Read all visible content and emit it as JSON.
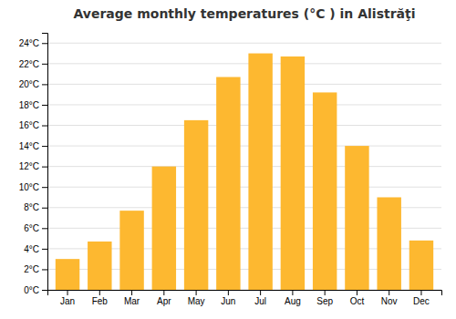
{
  "chart_data": {
    "type": "bar",
    "title": "Average monthly temperatures (°C ) in Alistrăţi",
    "categories": [
      "Jan",
      "Feb",
      "Mar",
      "Apr",
      "May",
      "Jun",
      "Jul",
      "Aug",
      "Sep",
      "Oct",
      "Nov",
      "Dec"
    ],
    "values": [
      3.0,
      4.7,
      7.7,
      12.0,
      16.5,
      20.7,
      23.0,
      22.7,
      19.2,
      14.0,
      9.0,
      4.8
    ],
    "color": "#FDB830",
    "ylim": [
      0,
      25
    ],
    "yticks": [
      {
        "value": 0,
        "label": "0°C"
      },
      {
        "value": 2,
        "label": "2°C"
      },
      {
        "value": 4,
        "label": "4°C"
      },
      {
        "value": 6,
        "label": "6°C"
      },
      {
        "value": 8,
        "label": "8°C"
      },
      {
        "value": 10,
        "label": "10°C"
      },
      {
        "value": 12,
        "label": "12°C"
      },
      {
        "value": 14,
        "label": "14°C"
      },
      {
        "value": 16,
        "label": "16°C"
      },
      {
        "value": 18,
        "label": "18°C"
      },
      {
        "value": 20,
        "label": "20°C"
      },
      {
        "value": 22,
        "label": "22°C"
      },
      {
        "value": 24,
        "label": "24°C"
      }
    ],
    "grid": true
  }
}
